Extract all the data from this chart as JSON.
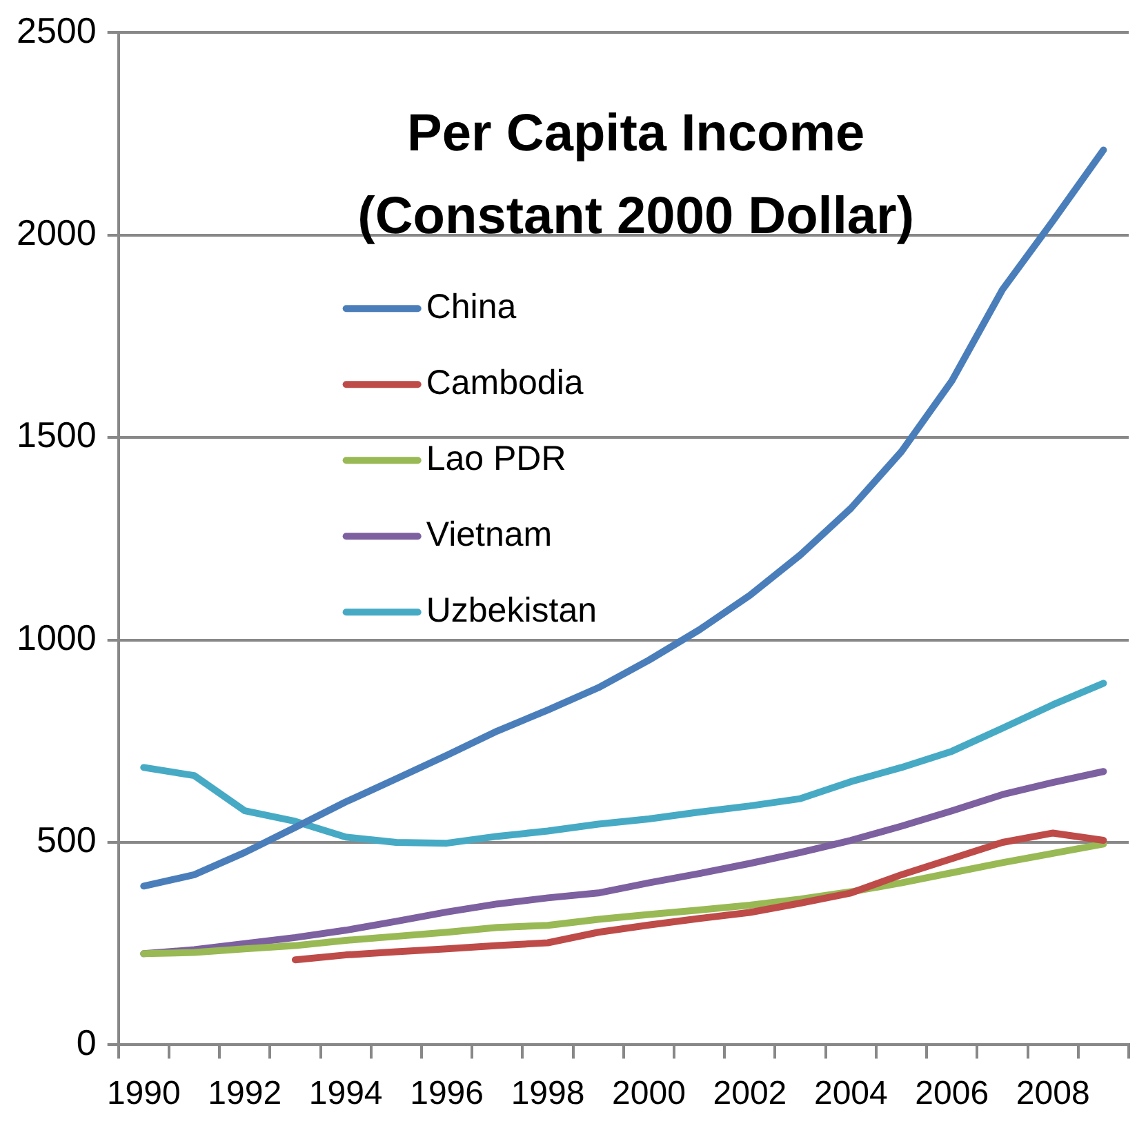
{
  "chart_data": {
    "type": "line",
    "title": "Per Capita Income\n(Constant 2000 Dollar)",
    "categories": [
      "1990",
      null,
      "1992",
      null,
      "1994",
      null,
      "1996",
      null,
      "1998",
      null,
      "2000",
      null,
      "2002",
      null,
      "2004",
      null,
      "2006",
      null,
      "2008",
      null
    ],
    "series": [
      {
        "name": "China",
        "color": "#4a7ebb",
        "values": [
          392,
          420,
          475,
          537,
          600,
          657,
          715,
          775,
          827,
          882,
          950,
          1025,
          1110,
          1210,
          1325,
          1465,
          1640,
          1865,
          2035,
          2210
        ]
      },
      {
        "name": "Cambodia",
        "color": "#be4b48",
        "values": [
          null,
          null,
          null,
          210,
          222,
          230,
          237,
          245,
          252,
          278,
          296,
          312,
          327,
          350,
          375,
          420,
          460,
          500,
          523,
          505
        ]
      },
      {
        "name": "Lao PDR",
        "color": "#98b954",
        "values": [
          225,
          228,
          237,
          245,
          258,
          268,
          278,
          290,
          295,
          310,
          322,
          333,
          345,
          360,
          378,
          400,
          425,
          450,
          473,
          496
        ]
      },
      {
        "name": "Vietnam",
        "color": "#7d60a0",
        "values": [
          225,
          235,
          250,
          265,
          283,
          305,
          328,
          348,
          363,
          375,
          400,
          423,
          448,
          475,
          505,
          540,
          578,
          618,
          648,
          675
        ]
      },
      {
        "name": "Uzbekistan",
        "color": "#46aac5",
        "values": [
          685,
          665,
          578,
          552,
          513,
          500,
          498,
          515,
          528,
          545,
          558,
          575,
          590,
          608,
          650,
          685,
          725,
          782,
          840,
          893
        ]
      }
    ],
    "ylim": [
      0,
      2500
    ],
    "yticks": [
      0,
      500,
      1000,
      1500,
      2000,
      2500
    ],
    "grid": "y",
    "legend": "top left",
    "marker": "none",
    "line_style": "solid"
  }
}
